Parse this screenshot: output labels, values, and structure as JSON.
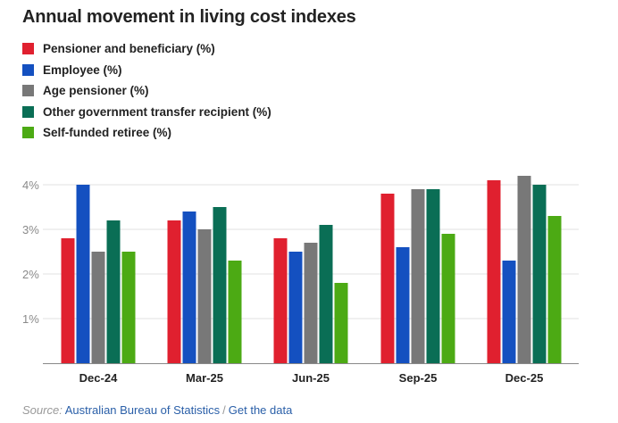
{
  "chart_data": {
    "type": "bar",
    "title": "Annual movement in living cost indexes",
    "xlabel": "",
    "ylabel": "",
    "categories": [
      "Dec-24",
      "Mar-25",
      "Jun-25",
      "Sep-25",
      "Dec-25"
    ],
    "series": [
      {
        "name": "Pensioner and beneficiary (%)",
        "color": "#e0202f",
        "values": [
          2.8,
          3.2,
          2.8,
          3.8,
          4.1
        ]
      },
      {
        "name": "Employee (%)",
        "color": "#1450c0",
        "values": [
          4.0,
          3.4,
          2.5,
          2.6,
          2.3
        ]
      },
      {
        "name": "Age pensioner (%)",
        "color": "#787878",
        "values": [
          2.5,
          3.0,
          2.7,
          3.9,
          4.2
        ]
      },
      {
        "name": "Other government transfer recipient (%)",
        "color": "#0a6e55",
        "values": [
          3.2,
          3.5,
          3.1,
          3.9,
          4.0
        ]
      },
      {
        "name": "Self-funded retiree (%)",
        "color": "#4caa14",
        "values": [
          2.5,
          2.3,
          1.8,
          2.9,
          3.3
        ]
      }
    ],
    "yticks": [
      "1%",
      "2%",
      "3%",
      "4%"
    ],
    "ytick_values": [
      1,
      2,
      3,
      4
    ],
    "ylim": [
      0,
      4.2
    ],
    "grid": true,
    "legend_position": "top-left"
  },
  "source": {
    "label": "Source:",
    "name": "Australian Bureau of Statistics",
    "separator": "/",
    "link": "Get the data"
  }
}
